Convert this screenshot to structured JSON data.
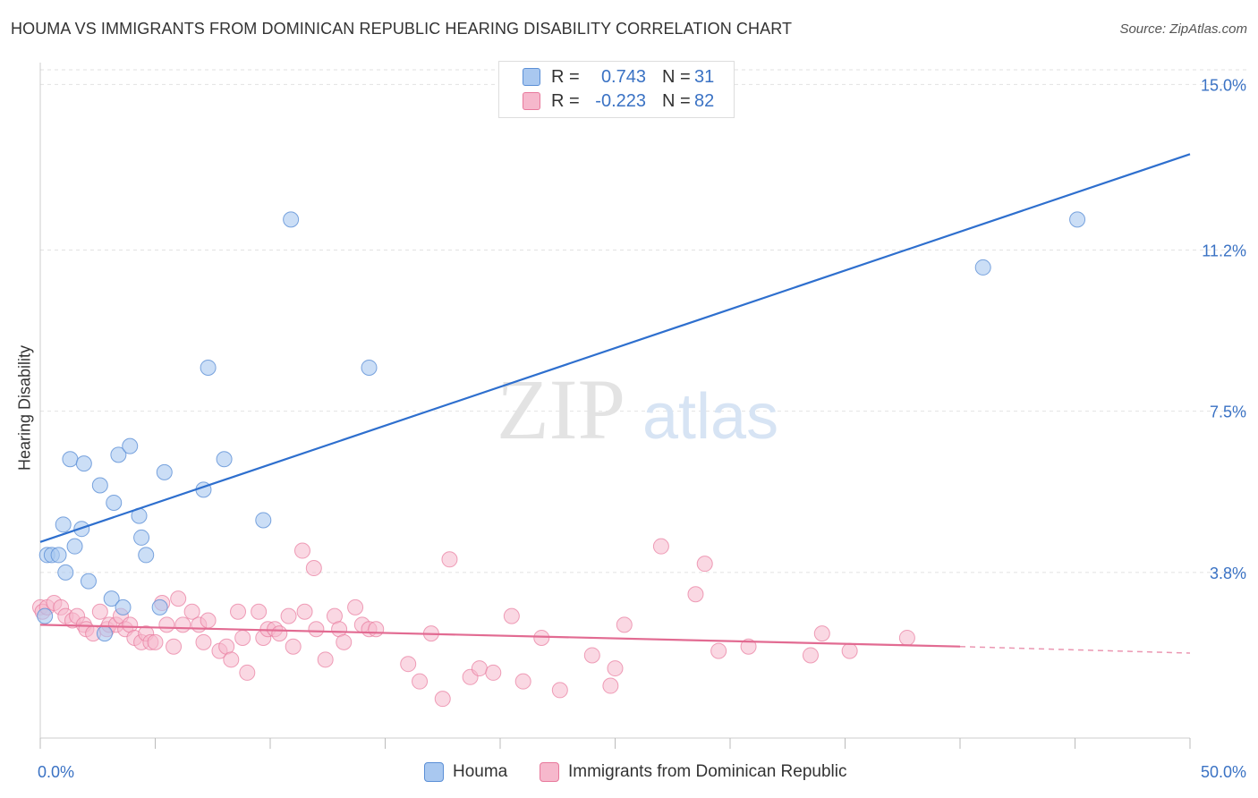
{
  "header": {
    "title": "HOUMA VS IMMIGRANTS FROM DOMINICAN REPUBLIC HEARING DISABILITY CORRELATION CHART",
    "source": "Source: ZipAtlas.com"
  },
  "watermark": {
    "zip": "ZIP",
    "atlas": "atlas"
  },
  "legend": {
    "rows": [
      {
        "r_label": "R =",
        "r_value": "0.743",
        "n_label": "N =",
        "n_value": "31",
        "color": "#a9c8f0"
      },
      {
        "r_label": "R =",
        "r_value": "-0.223",
        "n_label": "N =",
        "n_value": "82",
        "color": "#f6b8cc"
      }
    ]
  },
  "bottom_legend": {
    "houma": "Houma",
    "dominican": "Immigrants from Dominican Republic"
  },
  "chart_data": {
    "type": "scatter",
    "title": "HOUMA VS IMMIGRANTS FROM DOMINICAN REPUBLIC HEARING DISABILITY CORRELATION CHART",
    "xlabel": "",
    "ylabel": "Hearing Disability",
    "xlim": [
      0,
      50
    ],
    "ylim": [
      0,
      15.5
    ],
    "x_tick_labels": [
      "0.0%",
      "50.0%"
    ],
    "y_ticks": [
      3.8,
      7.5,
      11.2,
      15.0
    ],
    "y_tick_labels": [
      "3.8%",
      "7.5%",
      "11.2%",
      "15.0%"
    ],
    "grid": true,
    "legend_position": "top-center",
    "series": [
      {
        "name": "Houma",
        "color": "#a9c8f0",
        "stroke": "#5b8fd6",
        "line_color": "#2e6fce",
        "trend": {
          "x": [
            0,
            50
          ],
          "y": [
            4.5,
            13.4
          ]
        },
        "points": [
          [
            0.2,
            2.8
          ],
          [
            0.3,
            4.2
          ],
          [
            0.5,
            4.2
          ],
          [
            0.8,
            4.2
          ],
          [
            1.0,
            4.9
          ],
          [
            1.1,
            3.8
          ],
          [
            1.3,
            6.4
          ],
          [
            1.5,
            4.4
          ],
          [
            1.8,
            4.8
          ],
          [
            1.9,
            6.3
          ],
          [
            2.1,
            3.6
          ],
          [
            2.6,
            5.8
          ],
          [
            2.8,
            2.4
          ],
          [
            3.1,
            3.2
          ],
          [
            3.2,
            5.4
          ],
          [
            3.4,
            6.5
          ],
          [
            3.6,
            3.0
          ],
          [
            3.9,
            6.7
          ],
          [
            4.3,
            5.1
          ],
          [
            4.4,
            4.6
          ],
          [
            4.6,
            4.2
          ],
          [
            5.2,
            3.0
          ],
          [
            5.4,
            6.1
          ],
          [
            7.1,
            5.7
          ],
          [
            7.3,
            8.5
          ],
          [
            8.0,
            6.4
          ],
          [
            9.7,
            5.0
          ],
          [
            10.9,
            11.9
          ],
          [
            14.3,
            8.5
          ],
          [
            41.0,
            10.8
          ],
          [
            45.1,
            11.9
          ]
        ]
      },
      {
        "name": "Immigrants from Dominican Republic",
        "color": "#f6b8cc",
        "stroke": "#e8799c",
        "line_color": "#e26b92",
        "trend": {
          "x": [
            0,
            40
          ],
          "y": [
            2.6,
            2.1
          ]
        },
        "trend_dashed": {
          "x": [
            40,
            50
          ],
          "y": [
            2.1,
            1.95
          ]
        },
        "points": [
          [
            0.0,
            3.0
          ],
          [
            0.1,
            2.9
          ],
          [
            0.3,
            3.0
          ],
          [
            0.6,
            3.1
          ],
          [
            0.9,
            3.0
          ],
          [
            1.1,
            2.8
          ],
          [
            1.4,
            2.7
          ],
          [
            1.6,
            2.8
          ],
          [
            1.9,
            2.6
          ],
          [
            2.0,
            2.5
          ],
          [
            2.3,
            2.4
          ],
          [
            2.6,
            2.9
          ],
          [
            2.9,
            2.5
          ],
          [
            3.0,
            2.6
          ],
          [
            3.3,
            2.6
          ],
          [
            3.5,
            2.8
          ],
          [
            3.7,
            2.5
          ],
          [
            3.9,
            2.6
          ],
          [
            4.1,
            2.3
          ],
          [
            4.4,
            2.2
          ],
          [
            4.6,
            2.4
          ],
          [
            4.8,
            2.2
          ],
          [
            5.0,
            2.2
          ],
          [
            5.3,
            3.1
          ],
          [
            5.5,
            2.6
          ],
          [
            5.8,
            2.1
          ],
          [
            6.0,
            3.2
          ],
          [
            6.2,
            2.6
          ],
          [
            6.6,
            2.9
          ],
          [
            6.9,
            2.6
          ],
          [
            7.1,
            2.2
          ],
          [
            7.3,
            2.7
          ],
          [
            7.8,
            2.0
          ],
          [
            8.1,
            2.1
          ],
          [
            8.3,
            1.8
          ],
          [
            8.6,
            2.9
          ],
          [
            8.8,
            2.3
          ],
          [
            9.0,
            1.5
          ],
          [
            9.5,
            2.9
          ],
          [
            9.7,
            2.3
          ],
          [
            9.9,
            2.5
          ],
          [
            10.2,
            2.5
          ],
          [
            10.4,
            2.4
          ],
          [
            10.8,
            2.8
          ],
          [
            11.0,
            2.1
          ],
          [
            11.4,
            4.3
          ],
          [
            11.5,
            2.9
          ],
          [
            11.9,
            3.9
          ],
          [
            12.0,
            2.5
          ],
          [
            12.4,
            1.8
          ],
          [
            12.8,
            2.8
          ],
          [
            13.0,
            2.5
          ],
          [
            13.2,
            2.2
          ],
          [
            13.7,
            3.0
          ],
          [
            14.0,
            2.6
          ],
          [
            14.3,
            2.5
          ],
          [
            14.6,
            2.5
          ],
          [
            16.0,
            1.7
          ],
          [
            16.5,
            1.3
          ],
          [
            17.0,
            2.4
          ],
          [
            17.5,
            0.9
          ],
          [
            17.8,
            4.1
          ],
          [
            18.7,
            1.4
          ],
          [
            19.1,
            1.6
          ],
          [
            19.7,
            1.5
          ],
          [
            20.5,
            2.8
          ],
          [
            21.0,
            1.3
          ],
          [
            21.8,
            2.3
          ],
          [
            22.6,
            1.1
          ],
          [
            24.0,
            1.9
          ],
          [
            24.8,
            1.2
          ],
          [
            25.0,
            1.6
          ],
          [
            25.4,
            2.6
          ],
          [
            27.0,
            4.4
          ],
          [
            28.5,
            3.3
          ],
          [
            28.9,
            4.0
          ],
          [
            29.5,
            2.0
          ],
          [
            30.8,
            2.1
          ],
          [
            33.5,
            1.9
          ],
          [
            34.0,
            2.4
          ],
          [
            35.2,
            2.0
          ],
          [
            37.7,
            2.3
          ]
        ]
      }
    ]
  }
}
